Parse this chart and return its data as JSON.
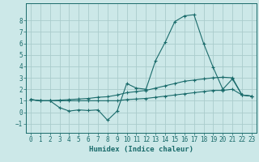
{
  "title": "",
  "xlabel": "Humidex (Indice chaleur)",
  "ylabel": "",
  "bg_color": "#cce8e8",
  "grid_color": "#aacccc",
  "line_color": "#1a6b6b",
  "xlim": [
    -0.5,
    23.5
  ],
  "ylim": [
    -1.8,
    9.5
  ],
  "xticks": [
    0,
    1,
    2,
    3,
    4,
    5,
    6,
    7,
    8,
    9,
    10,
    11,
    12,
    13,
    14,
    15,
    16,
    17,
    18,
    19,
    20,
    21,
    22,
    23
  ],
  "yticks": [
    -1,
    0,
    1,
    2,
    3,
    4,
    5,
    6,
    7,
    8
  ],
  "series1_x": [
    0,
    1,
    2,
    3,
    4,
    5,
    6,
    7,
    8,
    9,
    10,
    11,
    12,
    13,
    14,
    15,
    16,
    17,
    18,
    19,
    20,
    21,
    22,
    23
  ],
  "series1_y": [
    1.1,
    1.0,
    1.0,
    0.4,
    0.1,
    0.2,
    0.15,
    0.2,
    -0.7,
    0.1,
    2.5,
    2.1,
    2.0,
    4.5,
    6.1,
    7.9,
    8.4,
    8.5,
    6.0,
    3.9,
    2.0,
    2.9,
    1.5,
    1.4
  ],
  "series2_x": [
    0,
    1,
    2,
    3,
    4,
    5,
    6,
    7,
    8,
    9,
    10,
    11,
    12,
    13,
    14,
    15,
    16,
    17,
    18,
    19,
    20,
    21,
    22,
    23
  ],
  "series2_y": [
    1.1,
    1.0,
    1.0,
    1.05,
    1.1,
    1.15,
    1.2,
    1.3,
    1.35,
    1.5,
    1.7,
    1.8,
    1.9,
    2.1,
    2.3,
    2.5,
    2.7,
    2.8,
    2.9,
    3.0,
    3.05,
    3.0,
    1.5,
    1.4
  ],
  "series3_x": [
    0,
    1,
    2,
    3,
    4,
    5,
    6,
    7,
    8,
    9,
    10,
    11,
    12,
    13,
    14,
    15,
    16,
    17,
    18,
    19,
    20,
    21,
    22,
    23
  ],
  "series3_y": [
    1.1,
    1.0,
    1.0,
    1.0,
    1.0,
    1.0,
    1.0,
    1.0,
    1.0,
    1.0,
    1.1,
    1.15,
    1.2,
    1.3,
    1.4,
    1.5,
    1.6,
    1.7,
    1.8,
    1.9,
    1.9,
    2.0,
    1.5,
    1.4
  ],
  "xlabel_fontsize": 6.5,
  "tick_fontsize": 5.5
}
